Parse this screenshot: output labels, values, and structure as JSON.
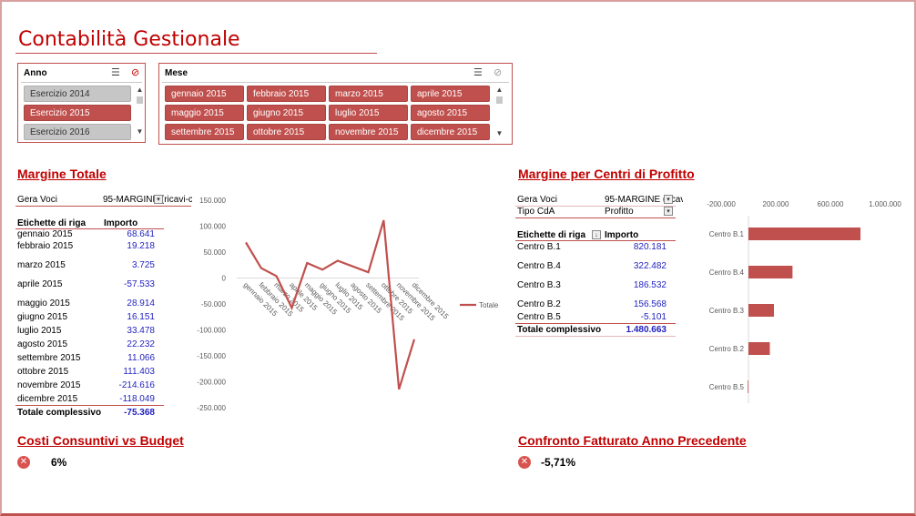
{
  "title": "Contabilità Gestionale",
  "anno_slicer": {
    "header": "Anno",
    "items": [
      {
        "label": "Esercizio 2014",
        "selected": false
      },
      {
        "label": "Esercizio 2015",
        "selected": true
      },
      {
        "label": "Esercizio 2016",
        "selected": false
      }
    ]
  },
  "mese_slicer": {
    "header": "Mese",
    "items": [
      {
        "label": "gennaio 2015"
      },
      {
        "label": "febbraio 2015"
      },
      {
        "label": "marzo 2015"
      },
      {
        "label": "aprile 2015"
      },
      {
        "label": "maggio 2015"
      },
      {
        "label": "giugno 2015"
      },
      {
        "label": "luglio 2015"
      },
      {
        "label": "agosto 2015"
      },
      {
        "label": "settembre 2015"
      },
      {
        "label": "ottobre 2015"
      },
      {
        "label": "novembre 2015"
      },
      {
        "label": "dicembre 2015"
      }
    ]
  },
  "margine_totale": {
    "title": "Margine Totale",
    "filter_label": "Gera Voci",
    "filter_value": "95-MARGINE (ricavi-c",
    "col_label": "Etichette di riga",
    "col_value": "Importo",
    "rows": [
      {
        "label": "gennaio 2015",
        "value": "68.641"
      },
      {
        "label": "febbraio 2015",
        "value": "19.218"
      },
      {
        "label": "marzo 2015",
        "value": "3.725"
      },
      {
        "label": "aprile 2015",
        "value": "-57.533"
      },
      {
        "label": "maggio 2015",
        "value": "28.914"
      },
      {
        "label": "giugno 2015",
        "value": "16.151"
      },
      {
        "label": "luglio 2015",
        "value": "33.478"
      },
      {
        "label": "agosto 2015",
        "value": "22.232"
      },
      {
        "label": "settembre 2015",
        "value": "11.066"
      },
      {
        "label": "ottobre 2015",
        "value": "111.403"
      },
      {
        "label": "novembre 2015",
        "value": "-214.616"
      },
      {
        "label": "dicembre 2015",
        "value": "-118.049"
      }
    ],
    "total_label": "Totale complessivo",
    "total_value": "-75.368"
  },
  "margine_centri": {
    "title": "Margine per Centri di Profitto",
    "filter1_label": "Gera Voci",
    "filter1_value": "95-MARGINE (ricav",
    "filter2_label": "Tipo CdA",
    "filter2_value": "Profitto",
    "col_label": "Etichette di riga",
    "col_value": "Importo",
    "rows": [
      {
        "label": "Centro B.1",
        "value": "820.181"
      },
      {
        "label": "Centro B.4",
        "value": "322.482"
      },
      {
        "label": "Centro B.3",
        "value": "186.532"
      },
      {
        "label": "Centro B.2",
        "value": "156.568"
      },
      {
        "label": "Centro B.5",
        "value": "-5.101"
      }
    ],
    "total_label": "Totale complessivo",
    "total_value": "1.480.663"
  },
  "kpi_costi": {
    "title": "Costi Consuntivi vs Budget",
    "value": "6%",
    "icon": "error-icon"
  },
  "kpi_fatturato": {
    "title": "Confronto Fatturato Anno Precedente",
    "value": "-5,71%",
    "icon": "error-icon"
  },
  "colors": {
    "accent": "#c0504d",
    "title": "#c00000",
    "value_blue": "#1f1fbf"
  },
  "chart_data": [
    {
      "type": "line",
      "title": "",
      "xlabel": "",
      "ylabel": "",
      "categories": [
        "gennaio 2015",
        "febbraio 2015",
        "marzo 2015",
        "aprile 2015",
        "maggio 2015",
        "giugno 2015",
        "luglio 2015",
        "agosto 2015",
        "settembre 2015",
        "ottobre 2015",
        "novembre 2015",
        "dicembre 2015"
      ],
      "series": [
        {
          "name": "Totale",
          "values": [
            68641,
            19218,
            3725,
            -57533,
            28914,
            16151,
            33478,
            22232,
            11066,
            111403,
            -214616,
            -118049
          ]
        }
      ],
      "y_ticks": [
        "150.000",
        "100.000",
        "50.000",
        "0",
        "-50.000",
        "-100.000",
        "-150.000",
        "-200.000",
        "-250.000"
      ],
      "ylim": [
        -250000,
        150000
      ],
      "legend": "right",
      "grid": false
    },
    {
      "type": "bar",
      "orientation": "horizontal",
      "title": "",
      "categories": [
        "Centro B.1",
        "Centro B.4",
        "Centro B.3",
        "Centro B.2",
        "Centro B.5"
      ],
      "values": [
        820181,
        322482,
        186532,
        156568,
        -5101
      ],
      "x_ticks": [
        "-200.000",
        "200.000",
        "600.000",
        "1.000.000"
      ],
      "xlim": [
        -200000,
        1000000
      ],
      "grid": false
    }
  ]
}
